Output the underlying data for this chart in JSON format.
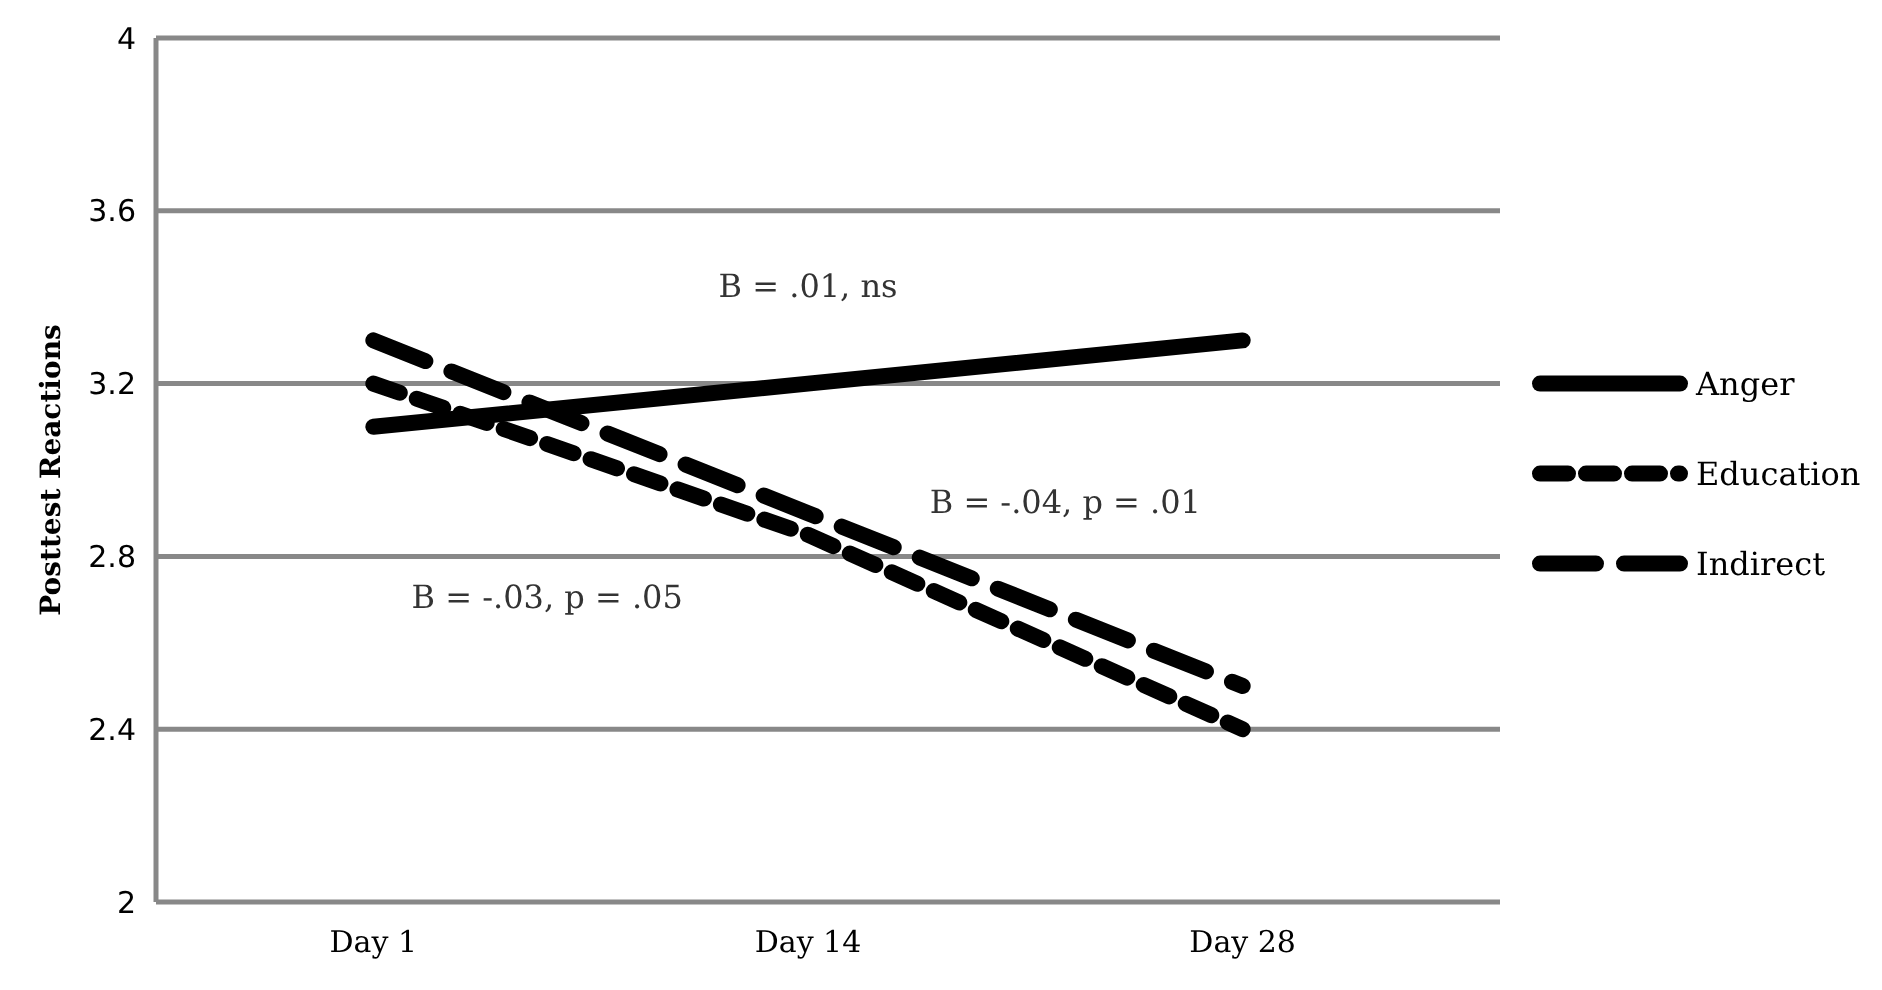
{
  "chart_data": {
    "type": "line",
    "ylabel": "Posttest Reactions",
    "categories": [
      "Day 1",
      "Day 14",
      "Day 28"
    ],
    "series": [
      {
        "name": "Anger",
        "color": "#000000",
        "values": [
          3.1,
          3.2,
          3.3
        ],
        "line_style": "solid"
      },
      {
        "name": "Education",
        "color": "#000000",
        "values": [
          3.2,
          2.85,
          2.4
        ],
        "line_style": "dotted"
      },
      {
        "name": "Indirect",
        "color": "#000000",
        "values": [
          3.3,
          2.9,
          2.5
        ],
        "line_style": "dashed"
      }
    ],
    "ylim": [
      2,
      4
    ],
    "yticks": [
      2,
      2.4,
      2.8,
      3.2,
      3.6,
      4
    ],
    "grid": "y",
    "legend": "right",
    "annotations": [
      "B = .01, ns",
      "B = -.04, p = .01",
      "B = -.03, p = .05"
    ]
  }
}
